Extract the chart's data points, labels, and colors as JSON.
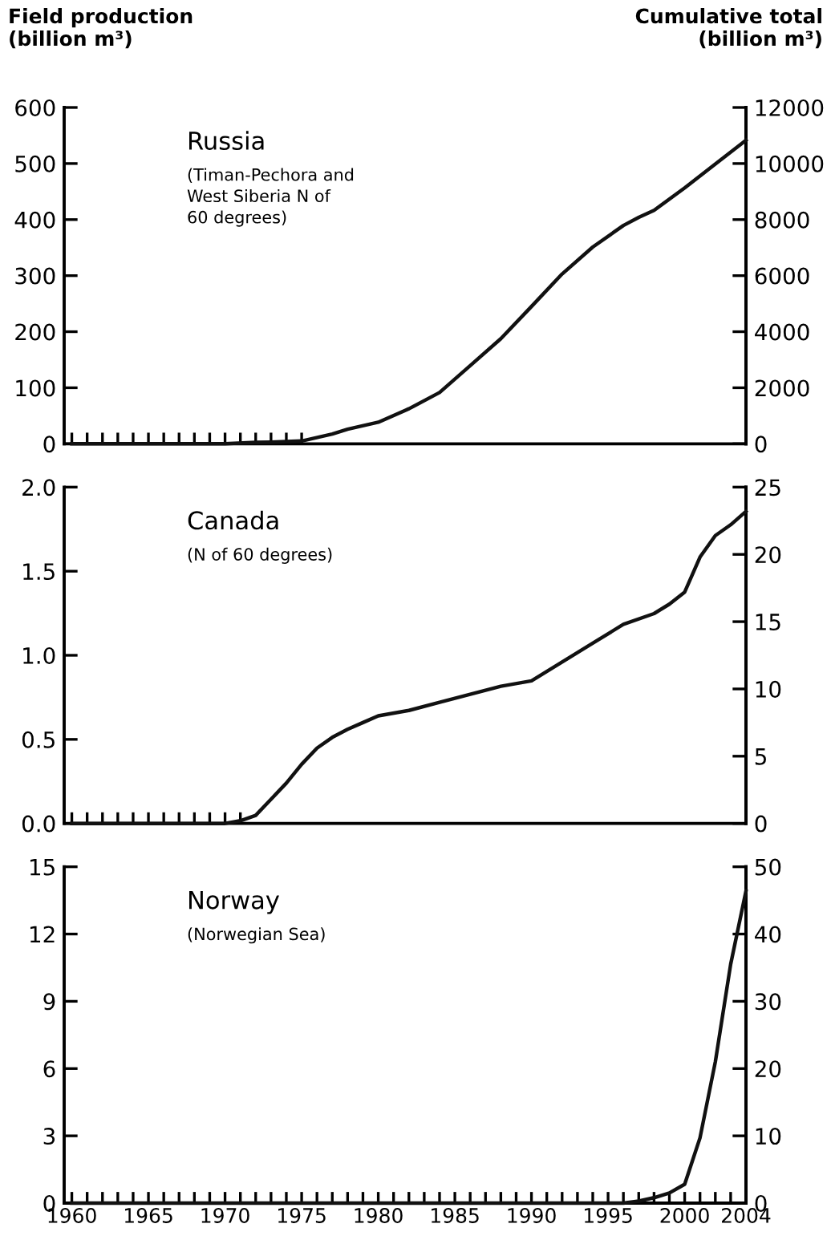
{
  "chart_data": [
    {
      "type": "line",
      "title": "Russia",
      "subtitle": "(Timan-Pechora and\nWest Siberia N of\n60 degrees)",
      "ylabel": "Field production\n(billion m³)",
      "y2label": "Cumulative total\n(billion m³)",
      "x": [
        1960,
        1970,
        1972,
        1973,
        1975,
        1977,
        1978,
        1980,
        1982,
        1984,
        1986,
        1988,
        1990,
        1992,
        1994,
        1996,
        1997,
        1998,
        2000,
        2002,
        2004
      ],
      "series": [
        {
          "color": "#111111",
          "axis": "y2",
          "values": [
            0,
            0,
            50,
            60,
            100,
            350,
            520,
            770,
            1250,
            1830,
            2790,
            3750,
            4900,
            6060,
            7020,
            7790,
            8080,
            8330,
            9130,
            9980,
            10830
          ]
        }
      ],
      "xlim": [
        1959.5,
        2004
      ],
      "xticks": [
        {
          "value": 1960,
          "label": null
        },
        {
          "value": 1961,
          "label": null
        },
        {
          "value": 1962,
          "label": null
        },
        {
          "value": 1963,
          "label": null
        },
        {
          "value": 1964,
          "label": null
        },
        {
          "value": 1965,
          "label": null
        },
        {
          "value": 1966,
          "label": null
        },
        {
          "value": 1967,
          "label": null
        },
        {
          "value": 1968,
          "label": null
        },
        {
          "value": 1969,
          "label": null
        },
        {
          "value": 1970,
          "label": null
        },
        {
          "value": 1971,
          "label": null
        },
        {
          "value": 1972,
          "label": null
        },
        {
          "value": 1973,
          "label": null
        },
        {
          "value": 1974,
          "label": null
        },
        {
          "value": 1975,
          "label": null
        }
      ],
      "ylim": [
        0,
        600
      ],
      "yticks": [
        0,
        100,
        200,
        300,
        400,
        500,
        600
      ],
      "y2lim": [
        0,
        12000
      ],
      "y2ticks": [
        0,
        2000,
        4000,
        6000,
        8000,
        10000,
        12000
      ],
      "tick_labels": "y",
      "grid": false,
      "marker": "none",
      "line_style": "solid"
    },
    {
      "type": "line",
      "title": "Canada",
      "subtitle": "(N of 60 degrees)",
      "x": [
        1960,
        1970,
        1971,
        1972,
        1973,
        1974,
        1975,
        1976,
        1977,
        1978,
        1979,
        1980,
        1982,
        1984,
        1986,
        1988,
        1990,
        1992,
        1994,
        1996,
        1998,
        1999,
        2000,
        2001,
        2002,
        2003,
        2004
      ],
      "series": [
        {
          "color": "#111111",
          "axis": "y2",
          "values": [
            0,
            0,
            0.2,
            0.6,
            1.8,
            3.0,
            4.4,
            5.6,
            6.4,
            7.0,
            7.5,
            8.0,
            8.4,
            9.0,
            9.6,
            10.2,
            10.6,
            12.0,
            13.4,
            14.8,
            15.6,
            16.3,
            17.2,
            19.8,
            21.4,
            22.2,
            23.2
          ]
        }
      ],
      "xlim": [
        1959.5,
        2004
      ],
      "xticks": [
        {
          "value": 1960,
          "label": null
        },
        {
          "value": 1961,
          "label": null
        },
        {
          "value": 1962,
          "label": null
        },
        {
          "value": 1963,
          "label": null
        },
        {
          "value": 1964,
          "label": null
        },
        {
          "value": 1965,
          "label": null
        },
        {
          "value": 1966,
          "label": null
        },
        {
          "value": 1967,
          "label": null
        },
        {
          "value": 1968,
          "label": null
        },
        {
          "value": 1969,
          "label": null
        },
        {
          "value": 1970,
          "label": null
        },
        {
          "value": 1971,
          "label": null
        }
      ],
      "ylim": [
        0,
        2.0
      ],
      "yticks": [
        {
          "value": 0,
          "label": "0.0"
        },
        0.5,
        {
          "value": 1,
          "label": "1.0"
        },
        1.5,
        {
          "value": 2,
          "label": "2.0"
        }
      ],
      "y2lim": [
        0,
        25
      ],
      "y2ticks": [
        0,
        5,
        10,
        15,
        20,
        25
      ],
      "tick_labels": "y",
      "grid": false,
      "marker": "none",
      "line_style": "solid"
    },
    {
      "type": "line",
      "title": "Norway",
      "subtitle": "(Norwegian Sea)",
      "x": [
        1960,
        1996,
        1997,
        1998,
        1999,
        2000,
        2001,
        2002,
        2003,
        2004
      ],
      "series": [
        {
          "color": "#111111",
          "axis": "y2",
          "values": [
            0,
            0,
            0.3,
            0.8,
            1.5,
            2.8,
            9.7,
            21,
            35.5,
            46.4
          ]
        }
      ],
      "xlim": [
        1959.5,
        2004
      ],
      "xticks": [
        1960,
        {
          "value": 1961,
          "label": null
        },
        {
          "value": 1962,
          "label": null
        },
        {
          "value": 1963,
          "label": null
        },
        {
          "value": 1964,
          "label": null
        },
        1965,
        {
          "value": 1966,
          "label": null
        },
        {
          "value": 1967,
          "label": null
        },
        {
          "value": 1968,
          "label": null
        },
        {
          "value": 1969,
          "label": null
        },
        1970,
        {
          "value": 1971,
          "label": null
        },
        {
          "value": 1972,
          "label": null
        },
        {
          "value": 1973,
          "label": null
        },
        {
          "value": 1974,
          "label": null
        },
        1975,
        {
          "value": 1976,
          "label": null
        },
        {
          "value": 1977,
          "label": null
        },
        {
          "value": 1978,
          "label": null
        },
        {
          "value": 1979,
          "label": null
        },
        1980,
        {
          "value": 1981,
          "label": null
        },
        {
          "value": 1982,
          "label": null
        },
        {
          "value": 1983,
          "label": null
        },
        {
          "value": 1984,
          "label": null
        },
        1985,
        {
          "value": 1986,
          "label": null
        },
        {
          "value": 1987,
          "label": null
        },
        {
          "value": 1988,
          "label": null
        },
        {
          "value": 1989,
          "label": null
        },
        1990,
        {
          "value": 1991,
          "label": null
        },
        {
          "value": 1992,
          "label": null
        },
        {
          "value": 1993,
          "label": null
        },
        {
          "value": 1994,
          "label": null
        },
        1995,
        {
          "value": 1996,
          "label": null
        },
        {
          "value": 1997,
          "label": null
        },
        {
          "value": 1998,
          "label": null
        },
        {
          "value": 1999,
          "label": null
        },
        2000,
        {
          "value": 2001,
          "label": null
        },
        {
          "value": 2002,
          "label": null
        },
        {
          "value": 2003,
          "label": null
        },
        2004
      ],
      "ylim": [
        0,
        15
      ],
      "yticks": [
        0,
        3,
        6,
        9,
        12,
        15
      ],
      "y2lim": [
        0,
        50
      ],
      "y2ticks": [
        0,
        10,
        20,
        30,
        40,
        50
      ],
      "grid": false,
      "marker": "none",
      "line_style": "solid"
    }
  ]
}
